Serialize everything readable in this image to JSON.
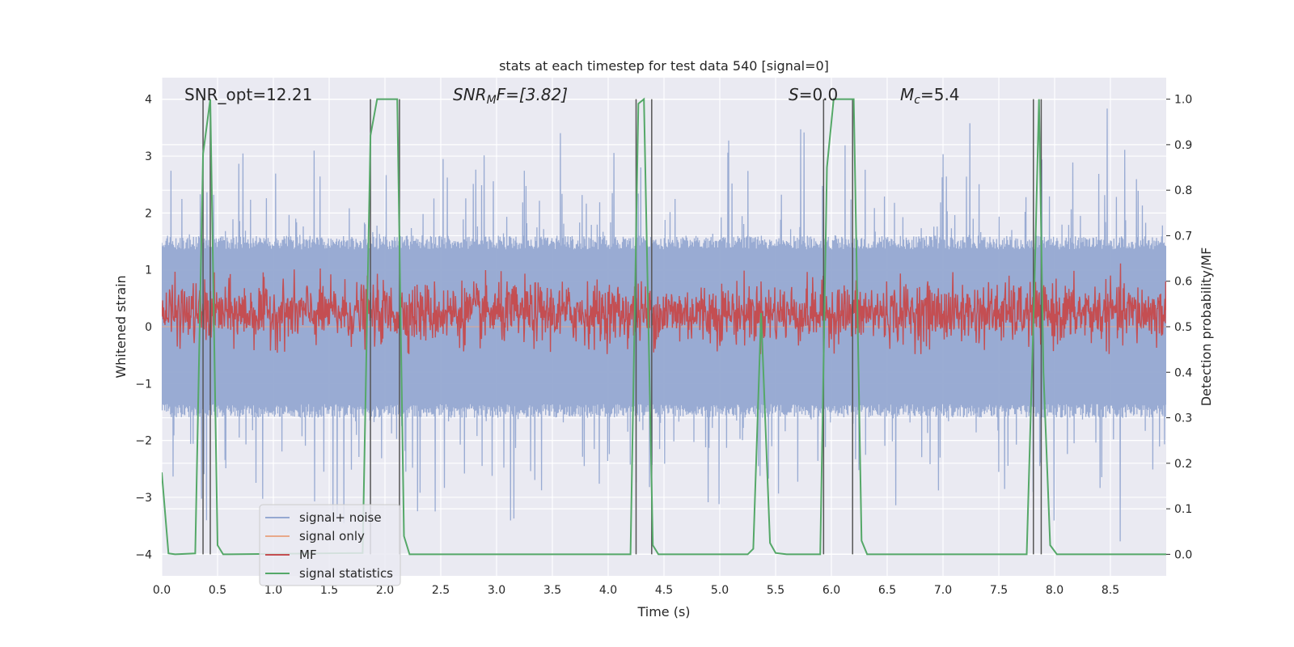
{
  "chart_data": {
    "type": "line",
    "title": "stats at each timestep for test data 540 [signal=0]",
    "xlabel": "Time (s)",
    "ylabel": "Whitened strain",
    "ylabel_right": "Detection probability/MF",
    "xlim": [
      0.0,
      9.0
    ],
    "ylim": [
      -4.38,
      4.38
    ],
    "ylim_right": [
      -0.0473,
      1.0473
    ],
    "x_ticks": [
      0.0,
      0.5,
      1.0,
      1.5,
      2.0,
      2.5,
      3.0,
      3.5,
      4.0,
      4.5,
      5.0,
      5.5,
      6.0,
      6.5,
      7.0,
      7.5,
      8.0,
      8.5
    ],
    "x_tick_labels": [
      "0.0",
      "0.5",
      "1.0",
      "1.5",
      "2.0",
      "2.5",
      "3.0",
      "3.5",
      "4.0",
      "4.5",
      "5.0",
      "5.5",
      "6.0",
      "6.5",
      "7.0",
      "7.5",
      "8.0",
      "8.5"
    ],
    "y_ticks": [
      -4,
      -3,
      -2,
      -1,
      0,
      1,
      2,
      3,
      4
    ],
    "y_tick_labels": [
      "−4",
      "−3",
      "−2",
      "−1",
      "0",
      "1",
      "2",
      "3",
      "4"
    ],
    "y_right_ticks": [
      0.0,
      0.1,
      0.2,
      0.3,
      0.4,
      0.5,
      0.6,
      0.7,
      0.8,
      0.9,
      1.0
    ],
    "y_right_tick_labels": [
      "0.0",
      "0.1",
      "0.2",
      "0.3",
      "0.4",
      "0.5",
      "0.6",
      "0.7",
      "0.8",
      "0.9",
      "1.0"
    ],
    "grid": true,
    "legend_position": "lower-left",
    "annotations": {
      "snr_opt": "SNR_opt=12.21",
      "snr_mf_sym": "SNR",
      "snr_mf_sub": "M",
      "snr_mf_rest": "F=[3.82]",
      "s_sym": "S",
      "s_rest": "=0.0",
      "mc_sym": "M",
      "mc_sub": "c",
      "mc_rest": "=5.4"
    },
    "series": [
      {
        "name": "signal+ noise",
        "color": "#95a8d1",
        "kind": "noise",
        "typical_abs_max": 1.6,
        "peak_abs_max": 3.9
      },
      {
        "name": "signal only",
        "color": "#e8a98a",
        "kind": "flat",
        "value": 0
      },
      {
        "name": "MF",
        "color": "#c44e52",
        "kind": "mf",
        "center_right": 0.53,
        "spread_right": 0.055
      },
      {
        "name": "signal statistics",
        "color": "#55a868",
        "axis": "right",
        "x": [
          0.0,
          0.06,
          0.12,
          0.3,
          0.37,
          0.435,
          0.5,
          0.55,
          0.6,
          1.8,
          1.87,
          1.93,
          2.11,
          2.17,
          2.22,
          2.27,
          4.2,
          4.27,
          4.32,
          4.4,
          4.45,
          4.5,
          5.25,
          5.3,
          5.37,
          5.45,
          5.5,
          5.6,
          5.9,
          5.96,
          6.02,
          6.2,
          6.27,
          6.32,
          6.38,
          7.75,
          7.82,
          7.86,
          7.9,
          7.96,
          8.02,
          8.08,
          9.0
        ],
        "y": [
          0.18,
          0.002,
          0.0,
          0.002,
          0.88,
          1.0,
          0.02,
          0.0,
          0.0,
          0.003,
          0.92,
          1.0,
          1.0,
          0.04,
          0.0,
          0.0,
          0.0,
          0.99,
          1.0,
          0.02,
          0.0,
          0.0,
          0.0,
          0.012,
          0.53,
          0.025,
          0.003,
          0.0,
          0.0,
          0.85,
          1.0,
          1.0,
          0.03,
          0.0,
          0.0,
          0.0,
          0.6,
          1.0,
          0.4,
          0.02,
          0.0,
          0.0,
          0.0
        ]
      }
    ],
    "vertical_lines_x": [
      0.37,
      0.435,
      1.87,
      2.13,
      4.25,
      4.39,
      5.93,
      6.19,
      7.81,
      7.88
    ],
    "vertical_line_color": "#555555"
  }
}
